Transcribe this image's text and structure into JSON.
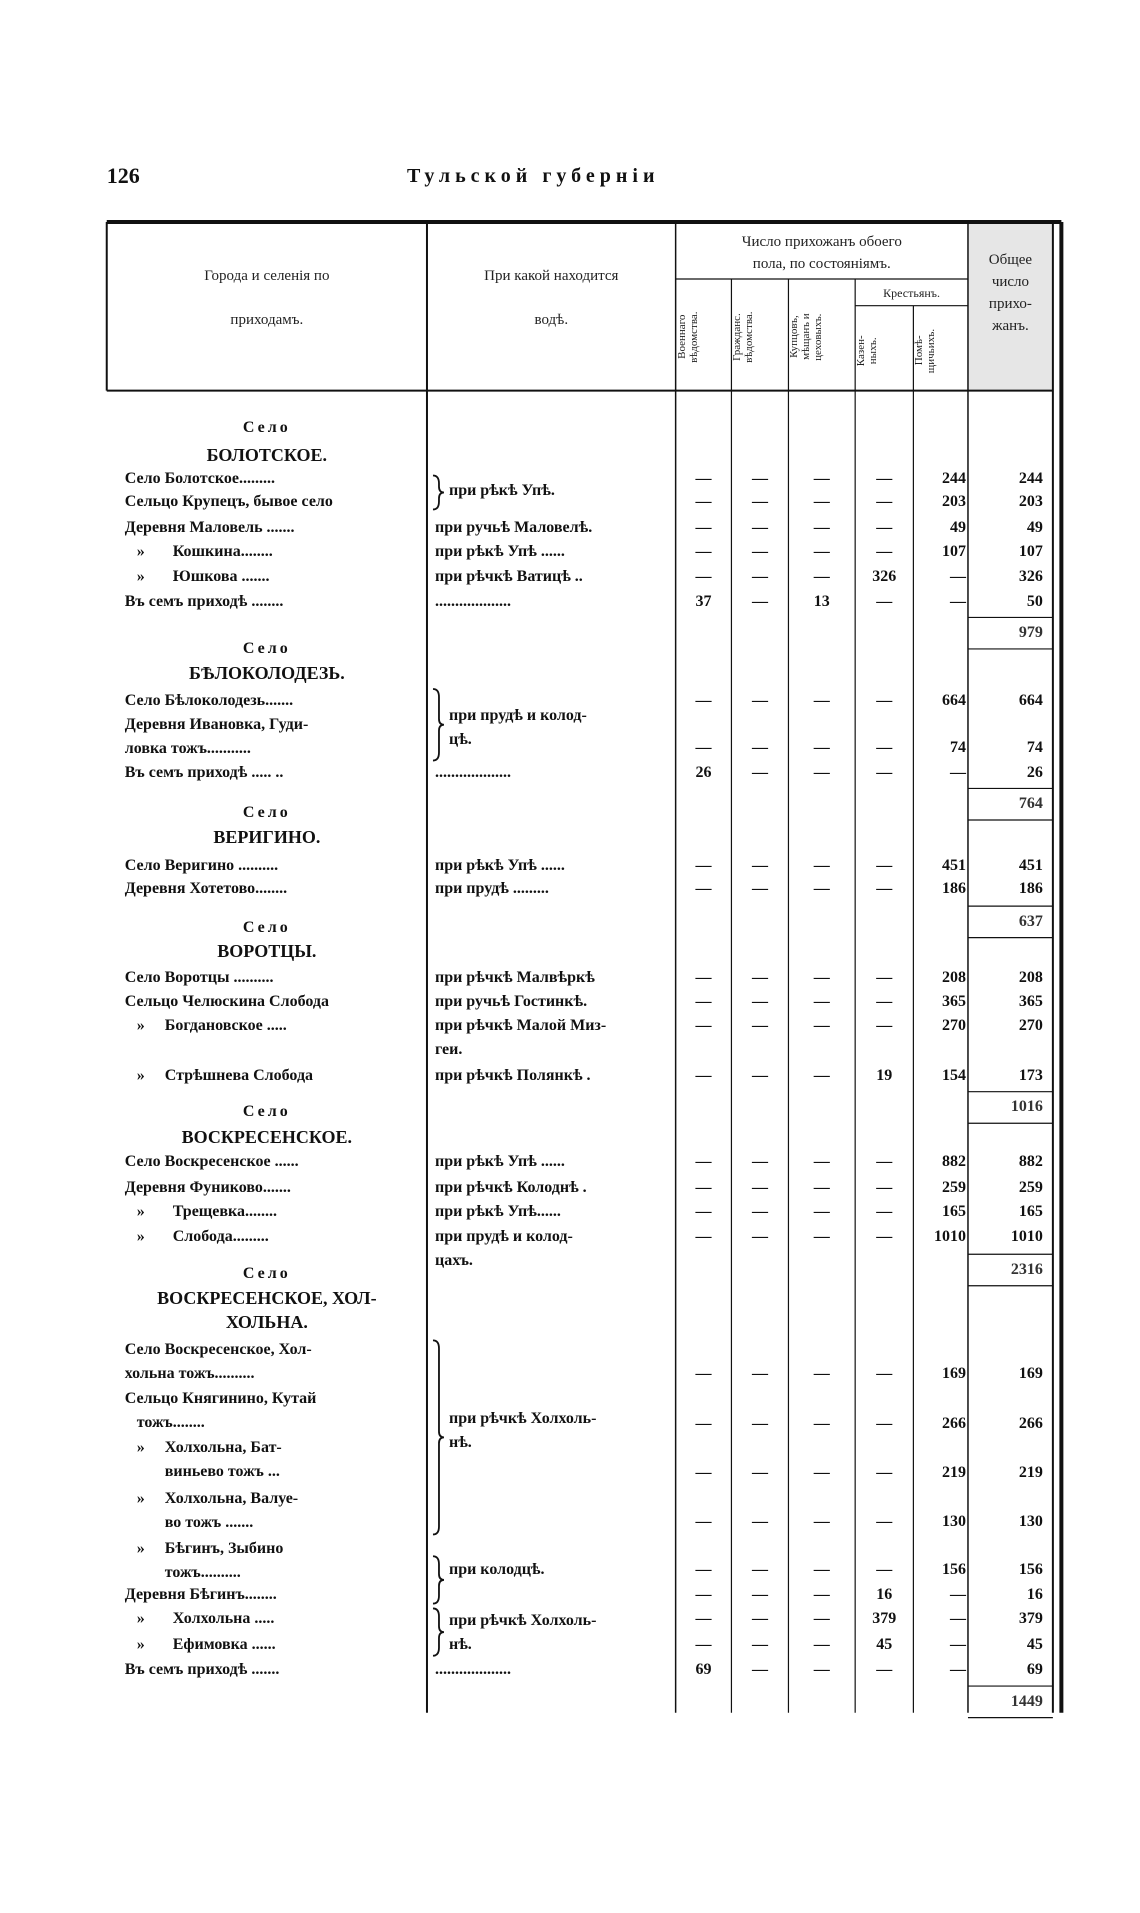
{
  "header": {
    "page_number": "126",
    "running_title": "Тульской губерніи"
  },
  "table": {
    "columns": {
      "place": "Города и селенія по\n\nприходамъ.",
      "water": "При какой находится\n\nводѣ.",
      "parishioners": "Число прихожанъ обоего\nпола, по состояніямъ.",
      "military": "Военнаго\nвѣдомства.",
      "civil": "Гражданс.\nвѣдомства.",
      "merchants": "Купцовъ,\nмѣщанъ и\nцеховыхъ.",
      "peasants": "Крестьянъ.",
      "state": "Казен-\nныхъ.",
      "landowner": "Помѣ-\nщичьихъ.",
      "total": "Общее\nчисло\nприхо-\nжанъ."
    },
    "groups": [
      {
        "label": "Село",
        "name": "БОЛОТСКОЕ.",
        "total": "979",
        "rows": [
          {
            "name": "Село Болотское.........",
            "water": "при рѣкѣ Упѣ.",
            "values": [
              "—",
              "—",
              "—",
              "—",
              "244"
            ],
            "total": "244"
          },
          {
            "name": "Сельцо Крупецъ, бывое село",
            "values": [
              "—",
              "—",
              "—",
              "—",
              "203"
            ],
            "total": "203"
          },
          {
            "name": "Деревня Маловель .......",
            "water": "при ручьѣ Маловелѣ.",
            "values": [
              "—",
              "—",
              "—",
              "—",
              "49"
            ],
            "total": "49"
          },
          {
            "name": "   »       Кошкина........",
            "water": "при рѣкѣ Упѣ ......",
            "values": [
              "—",
              "—",
              "—",
              "—",
              "107"
            ],
            "total": "107"
          },
          {
            "name": "   »       Юшкова .......",
            "water": "при рѣчкѣ Ватицѣ ..",
            "values": [
              "—",
              "—",
              "—",
              "326",
              "—"
            ],
            "total": "326"
          },
          {
            "name": "Въ семъ приходѣ ........",
            "water": "...................",
            "values": [
              "37",
              "—",
              "13",
              "—",
              "—"
            ],
            "total": "50"
          }
        ]
      },
      {
        "label": "Село",
        "name": "БѢЛОКОЛОДЕЗЬ.",
        "total": "764",
        "rows": [
          {
            "name": "Село Бѣлоколодезь.......",
            "water": "при прудѣ и колод-\nцѣ.",
            "values": [
              "—",
              "—",
              "—",
              "—",
              "664"
            ],
            "total": "664"
          },
          {
            "name": "Деревня Ивановка, Гуди-\nловка тожъ...........",
            "values": [
              "—",
              "—",
              "—",
              "—",
              "74"
            ],
            "total": "74"
          },
          {
            "name": "Въ семъ приходѣ ..... ..",
            "water": "...................",
            "values": [
              "26",
              "—",
              "—",
              "—",
              "—"
            ],
            "total": "26"
          }
        ]
      },
      {
        "label": "Село",
        "name": "ВЕРИГИНО.",
        "total": "637",
        "rows": [
          {
            "name": "Село Веригино ..........",
            "water": "при рѣкѣ Упѣ ......",
            "values": [
              "—",
              "—",
              "—",
              "—",
              "451"
            ],
            "total": "451"
          },
          {
            "name": "Деревня Хотетово........",
            "water": "при прудѣ .........",
            "values": [
              "—",
              "—",
              "—",
              "—",
              "186"
            ],
            "total": "186"
          }
        ]
      },
      {
        "label": "Село",
        "name": "ВОРОТЦЫ.",
        "total": "1016",
        "rows": [
          {
            "name": "Село Воротцы ..........",
            "water": "при рѣчкѣ Малвѣркѣ",
            "values": [
              "—",
              "—",
              "—",
              "—",
              "208"
            ],
            "total": "208"
          },
          {
            "name": "Сельцо Челюскина Слобода",
            "water": "при ручьѣ Гостинкѣ.",
            "values": [
              "—",
              "—",
              "—",
              "—",
              "365"
            ],
            "total": "365"
          },
          {
            "name": "   »     Богдановское .....",
            "water": "при рѣчкѣ Малой Миз-\nгеи.",
            "values": [
              "—",
              "—",
              "—",
              "—",
              "270"
            ],
            "total": "270"
          },
          {
            "name": "   »     Стрѣшнева Слобода",
            "water": "при рѣчкѣ Полянкѣ .",
            "values": [
              "—",
              "—",
              "—",
              "19",
              "154"
            ],
            "total": "173"
          }
        ]
      },
      {
        "label": "Село",
        "name": "ВОСКРЕСЕНСКОЕ.",
        "total": "2316",
        "rows": [
          {
            "name": "Село Воскресенское ......",
            "water": "при рѣкѣ Упѣ ......",
            "values": [
              "—",
              "—",
              "—",
              "—",
              "882"
            ],
            "total": "882"
          },
          {
            "name": "Деревня Фуниково.......",
            "water": "при рѣчкѣ Колоднѣ .",
            "values": [
              "—",
              "—",
              "—",
              "—",
              "259"
            ],
            "total": "259"
          },
          {
            "name": "   »       Трещевка........",
            "water": "при рѣкѣ Упѣ......",
            "values": [
              "—",
              "—",
              "—",
              "—",
              "165"
            ],
            "total": "165"
          },
          {
            "name": "   »       Слобода.........",
            "water": "при прудѣ и колод-\nцахъ.",
            "values": [
              "—",
              "—",
              "—",
              "—",
              "1010"
            ],
            "total": "1010"
          }
        ]
      },
      {
        "label": "Село",
        "name": "ВОСКРЕСЕНСКОЕ, ХОЛ-\nХОЛЬНА.",
        "total": "1449",
        "rows": [
          {
            "name": "Село Воскресенское, Хол-\nхольна тожъ..........",
            "water": "при рѣчкѣ Холхоль-\nнѣ.",
            "values": [
              "—",
              "—",
              "—",
              "—",
              "169"
            ],
            "total": "169"
          },
          {
            "name": "Сельцо Княгинино, Кутай\n   тожъ........",
            "values": [
              "—",
              "—",
              "—",
              "—",
              "266"
            ],
            "total": "266"
          },
          {
            "name": "   »     Холхольна, Бат-\n          виньево тожъ ...",
            "values": [
              "—",
              "—",
              "—",
              "—",
              "219"
            ],
            "total": "219"
          },
          {
            "name": "   »     Холхольна, Валуе-\n          во тожъ .......",
            "values": [
              "—",
              "—",
              "—",
              "—",
              "130"
            ],
            "total": "130"
          },
          {
            "name": "   »     Бѣгинъ, Зыбино\n          тожъ..........",
            "water": "при колодцѣ.",
            "values": [
              "—",
              "—",
              "—",
              "—",
              "156"
            ],
            "total": "156"
          },
          {
            "name": "Деревня Бѣгинъ........",
            "values": [
              "—",
              "—",
              "—",
              "16",
              "—"
            ],
            "total": "16"
          },
          {
            "name": "   »       Холхольна .....",
            "water": "при рѣчкѣ Холхоль-\nнѣ.",
            "values": [
              "—",
              "—",
              "—",
              "379",
              "—"
            ],
            "total": "379"
          },
          {
            "name": "   »       Ефимовка ......",
            "values": [
              "—",
              "—",
              "—",
              "45",
              "—"
            ],
            "total": "45"
          },
          {
            "name": "Въ семъ приходѣ .......",
            "water": "...................",
            "values": [
              "69",
              "—",
              "—",
              "—",
              "—"
            ],
            "total": "69"
          }
        ]
      }
    ]
  }
}
